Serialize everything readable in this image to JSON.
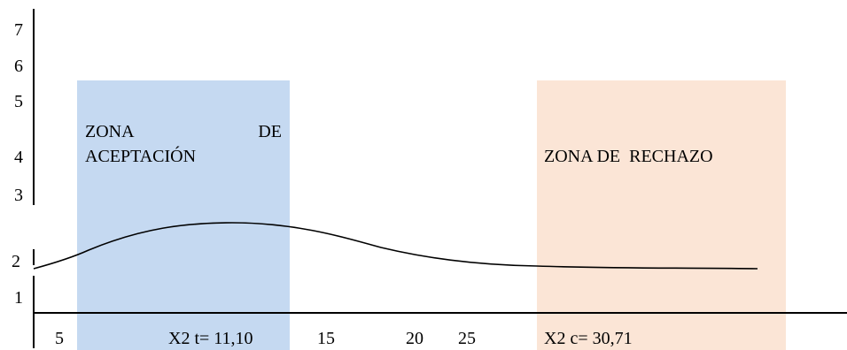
{
  "colors": {
    "acceptance_zone": "#c5d9f1",
    "rejection_zone": "#fbe5d6",
    "axis": "#000000",
    "curve": "#000000"
  },
  "acceptance_zone": {
    "label_word1": "ZONA",
    "label_word2": "DE",
    "label_line2": "ACEPTACIÓN"
  },
  "rejection_zone": {
    "label": "ZONA DE  RECHAZO"
  },
  "y_axis": {
    "ticks": [
      "7",
      "6",
      "5",
      "4",
      "3",
      "2",
      "1"
    ]
  },
  "x_axis": {
    "ticks": [
      "5",
      "15",
      "20",
      "25"
    ],
    "critical_table": "X2 t= 11,10",
    "critical_calc": "X2 c= 30,71"
  }
}
